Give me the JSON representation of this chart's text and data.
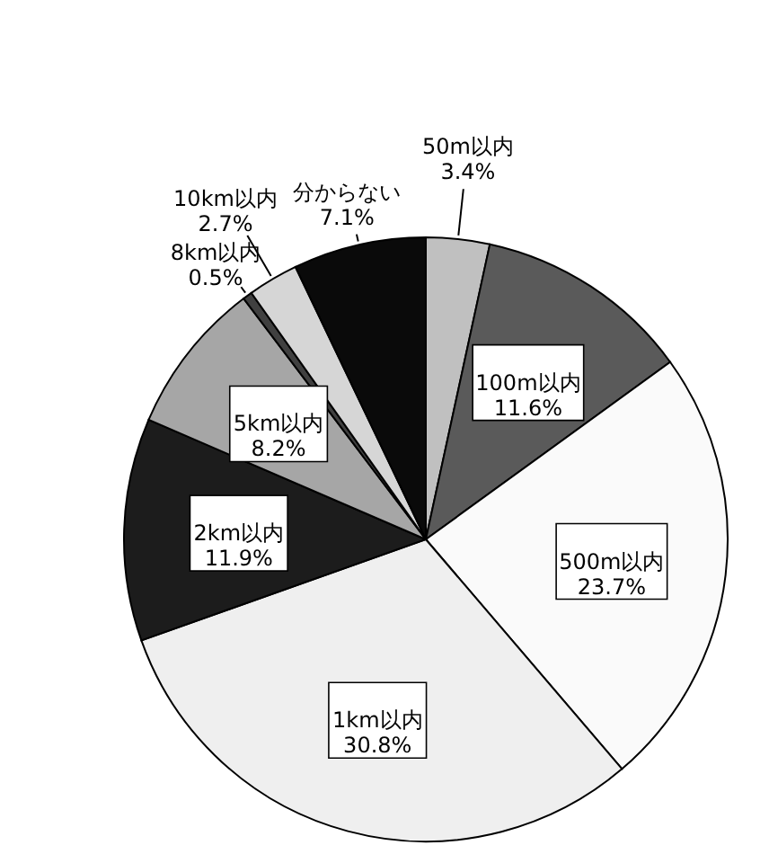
{
  "chart_data": {
    "type": "pie",
    "categories": [
      "50m以内",
      "100m以内",
      "500m以内",
      "1km以内",
      "2km以内",
      "5km以内",
      "8km以内",
      "10km以内",
      "分からない"
    ],
    "values": [
      3.4,
      11.6,
      23.7,
      30.8,
      11.9,
      8.2,
      0.5,
      2.7,
      7.1
    ],
    "colors": [
      "#c0c0c0",
      "#5a5a5a",
      "#fafafa",
      "#efefef",
      "#1c1c1c",
      "#a6a6a6",
      "#404040",
      "#d6d6d6",
      "#0a0a0a"
    ],
    "value_labels": [
      "3.4%",
      "11.6%",
      "23.7%",
      "30.8%",
      "11.9%",
      "8.2%",
      "0.5%",
      "2.7%",
      "7.1%"
    ]
  }
}
